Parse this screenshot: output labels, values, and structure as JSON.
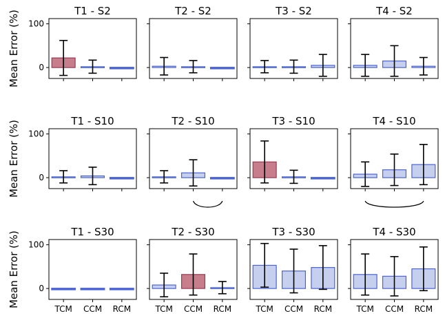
{
  "ylabel": "Mean Error (%)",
  "categories": [
    "TCM",
    "CCM",
    "RCM"
  ],
  "y_ticks": [
    0,
    100
  ],
  "colors": {
    "normal_fill": "#c7cfee",
    "normal_edge": "#4a63d4",
    "highlight_fill": "#c77d8c",
    "highlight_edge": "#9a3a52",
    "error_bar": "#000000"
  },
  "chart_data": [
    {
      "type": "bar",
      "title": "T1 - S2",
      "row": 0,
      "col": 0,
      "ylim": [
        -25,
        112
      ],
      "categories": [
        "TCM",
        "CCM",
        "RCM"
      ],
      "values": [
        22,
        2,
        0
      ],
      "errors": [
        40,
        15,
        1
      ],
      "highlight": [
        true,
        false,
        false
      ]
    },
    {
      "type": "bar",
      "title": "T2 - S2",
      "row": 0,
      "col": 1,
      "ylim": [
        -25,
        112
      ],
      "categories": [
        "TCM",
        "CCM",
        "RCM"
      ],
      "values": [
        3,
        2,
        0
      ],
      "errors": [
        20,
        14,
        1
      ],
      "highlight": [
        false,
        false,
        false
      ]
    },
    {
      "type": "bar",
      "title": "T3 - S2",
      "row": 0,
      "col": 2,
      "ylim": [
        -25,
        112
      ],
      "categories": [
        "TCM",
        "CCM",
        "RCM"
      ],
      "values": [
        2,
        2,
        5
      ],
      "errors": [
        14,
        15,
        25
      ],
      "highlight": [
        false,
        false,
        false
      ]
    },
    {
      "type": "bar",
      "title": "T4 - S2",
      "row": 0,
      "col": 3,
      "ylim": [
        -25,
        112
      ],
      "categories": [
        "TCM",
        "CCM",
        "RCM"
      ],
      "values": [
        5,
        15,
        3
      ],
      "errors": [
        25,
        35,
        20
      ],
      "highlight": [
        false,
        false,
        false
      ]
    },
    {
      "type": "bar",
      "title": "T1 - S10",
      "row": 1,
      "col": 0,
      "ylim": [
        -25,
        112
      ],
      "categories": [
        "TCM",
        "CCM",
        "RCM"
      ],
      "values": [
        2,
        4,
        0
      ],
      "errors": [
        14,
        20,
        1
      ],
      "highlight": [
        false,
        false,
        false
      ]
    },
    {
      "type": "bar",
      "title": "T2 - S10",
      "row": 1,
      "col": 1,
      "ylim": [
        -25,
        112
      ],
      "categories": [
        "TCM",
        "CCM",
        "RCM"
      ],
      "values": [
        2,
        11,
        0
      ],
      "errors": [
        14,
        30,
        1
      ],
      "highlight": [
        false,
        false,
        false
      ]
    },
    {
      "type": "bar",
      "title": "T3 - S10",
      "row": 1,
      "col": 2,
      "ylim": [
        -25,
        112
      ],
      "categories": [
        "TCM",
        "CCM",
        "RCM"
      ],
      "values": [
        36,
        2,
        0
      ],
      "errors": [
        48,
        15,
        1
      ],
      "highlight": [
        true,
        false,
        false
      ]
    },
    {
      "type": "bar",
      "title": "T4 - S10",
      "row": 1,
      "col": 3,
      "ylim": [
        -25,
        112
      ],
      "categories": [
        "TCM",
        "CCM",
        "RCM"
      ],
      "values": [
        8,
        18,
        30
      ],
      "errors": [
        28,
        36,
        46
      ],
      "highlight": [
        false,
        false,
        false
      ]
    },
    {
      "type": "bar",
      "title": "T1 - S30",
      "row": 2,
      "col": 0,
      "ylim": [
        -25,
        112
      ],
      "categories": [
        "TCM",
        "CCM",
        "RCM"
      ],
      "values": [
        0,
        0,
        0
      ],
      "errors": [
        1,
        1,
        1
      ],
      "highlight": [
        false,
        false,
        false
      ]
    },
    {
      "type": "bar",
      "title": "T2 - S30",
      "row": 2,
      "col": 1,
      "ylim": [
        -25,
        112
      ],
      "categories": [
        "TCM",
        "CCM",
        "RCM"
      ],
      "values": [
        8,
        32,
        2
      ],
      "errors": [
        27,
        47,
        14
      ],
      "highlight": [
        false,
        true,
        false
      ]
    },
    {
      "type": "bar",
      "title": "T3 - S30",
      "row": 2,
      "col": 2,
      "ylim": [
        -25,
        112
      ],
      "categories": [
        "TCM",
        "CCM",
        "RCM"
      ],
      "values": [
        53,
        40,
        48
      ],
      "errors": [
        50,
        50,
        50
      ],
      "highlight": [
        false,
        false,
        false
      ]
    },
    {
      "type": "bar",
      "title": "T4 - S30",
      "row": 2,
      "col": 3,
      "ylim": [
        -25,
        112
      ],
      "categories": [
        "TCM",
        "CCM",
        "RCM"
      ],
      "values": [
        32,
        28,
        45
      ],
      "errors": [
        47,
        45,
        50
      ],
      "highlight": [
        false,
        false,
        false
      ]
    }
  ],
  "brackets": [
    {
      "row": 1,
      "col": 1,
      "from_index": 1,
      "to_index": 2
    },
    {
      "row": 1,
      "col": 3,
      "from_index": 0,
      "to_index": 2
    }
  ]
}
